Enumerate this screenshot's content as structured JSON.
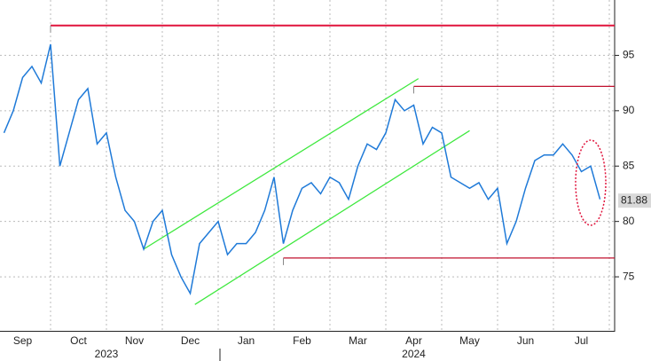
{
  "chart_data": {
    "type": "line",
    "categories": [
      null,
      null,
      "Sep",
      null,
      null,
      null,
      null,
      null,
      "Oct",
      null,
      null,
      null,
      null,
      null,
      "Nov",
      null,
      null,
      null,
      null,
      null,
      "Dec",
      null,
      null,
      null,
      null,
      null,
      "Jan",
      null,
      null,
      null,
      null,
      null,
      "Feb",
      null,
      null,
      null,
      null,
      null,
      "Mar",
      null,
      null,
      null,
      null,
      null,
      "Apr",
      null,
      null,
      null,
      null,
      null,
      "May",
      null,
      null,
      null,
      null,
      null,
      "Jun",
      null,
      null,
      null,
      null,
      null,
      "Jul",
      null,
      null
    ],
    "x_groups": [
      {
        "label": "2023",
        "at": 11
      },
      {
        "label": "2024",
        "at": 44
      }
    ],
    "series": [
      {
        "color": "#1f7ad8",
        "values": [
          88,
          90,
          93,
          94,
          92.5,
          96,
          85,
          88,
          91,
          92,
          87,
          88,
          84,
          81,
          80,
          77.5,
          80,
          81,
          77,
          75,
          73.5,
          78,
          79,
          80,
          77,
          78,
          78,
          79,
          81,
          84,
          78,
          81,
          83,
          83.5,
          82.5,
          84,
          83.5,
          82,
          85,
          87,
          86.5,
          88,
          91,
          90,
          90.5,
          87,
          88.5,
          88,
          84,
          83.5,
          83,
          83.5,
          82,
          83,
          78,
          80,
          83,
          85.5,
          86,
          86,
          87,
          86,
          84.5,
          85,
          82
        ]
      }
    ],
    "ylim": [
      70,
      100
    ],
    "yticks": [
      75,
      80,
      85,
      90,
      95
    ],
    "grid": true,
    "last_price": {
      "value": 81.88,
      "label": "81.88"
    },
    "levels": [
      {
        "value": 97.7,
        "from": 5,
        "color": "#e0143c"
      },
      {
        "value": 92.2,
        "from": 44,
        "color": "#c0102e"
      },
      {
        "value": 76.7,
        "from": 30,
        "color": "#c0102e"
      }
    ],
    "channel": {
      "color": "#3ee83e",
      "lines": [
        [
          [
            15,
            77.5
          ],
          [
            44.5,
            92.9
          ]
        ],
        [
          [
            20.5,
            72.5
          ],
          [
            50,
            88.2
          ]
        ]
      ]
    },
    "highlight": {
      "x": 63,
      "y": 83.5,
      "color": "#e0143c"
    }
  }
}
